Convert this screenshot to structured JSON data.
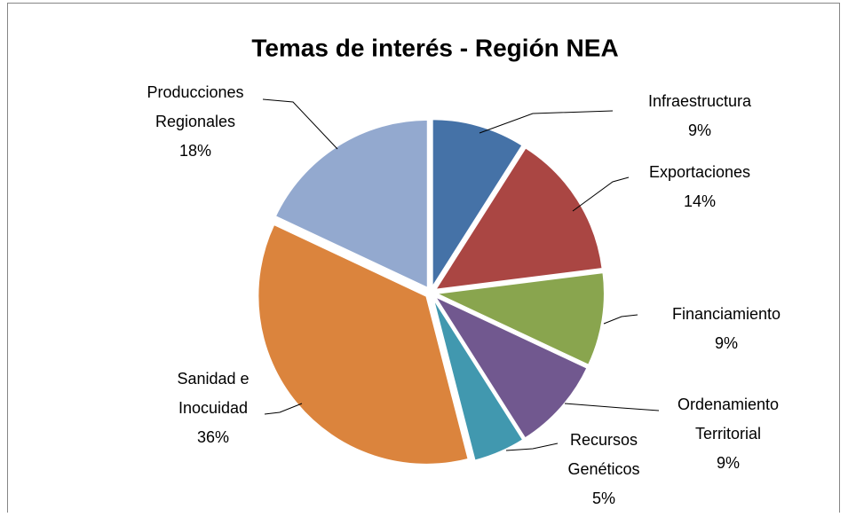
{
  "chart_data": {
    "type": "pie",
    "title": "Temas de interés - Región NEA",
    "categories": [
      "Infraestructura",
      "Exportaciones",
      "Financiamiento",
      "Ordenamiento\nTerritorial",
      "Recursos\nGenéticos",
      "Sanidad e\nInocuidad",
      "Producciones\nRegionales"
    ],
    "values": [
      9,
      14,
      9,
      9,
      5,
      36,
      18
    ],
    "value_labels": [
      "9%",
      "14%",
      "9%",
      "9%",
      "5%",
      "36%",
      "18%"
    ],
    "colors": [
      "#4572a7",
      "#aa4643",
      "#89a54e",
      "#71588f",
      "#4198af",
      "#db843d",
      "#93a9cf"
    ]
  }
}
